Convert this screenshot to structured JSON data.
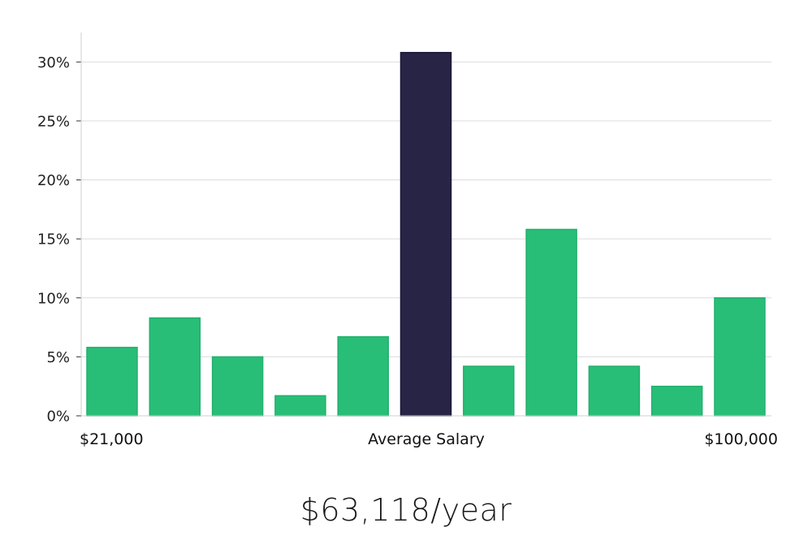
{
  "chart_data": {
    "type": "bar",
    "values": [
      5.8,
      8.3,
      5.0,
      1.7,
      6.7,
      30.8,
      4.2,
      15.8,
      4.2,
      2.5,
      10.0
    ],
    "highlight_index": 5,
    "ylim": [
      0,
      32.5
    ],
    "yticks": [
      0,
      5,
      10,
      15,
      20,
      25,
      30
    ],
    "ytick_labels": [
      "0%",
      "5%",
      "10%",
      "15%",
      "20%",
      "25%",
      "30%"
    ],
    "grid": true,
    "x_labels": {
      "left": "$21,000",
      "center": "Average Salary",
      "right": "$100,000"
    },
    "colors": {
      "bar": "#29BE77",
      "highlight": "#272446",
      "grid": "#dcdcdc",
      "axis": "#cfcfcf"
    }
  },
  "summary": {
    "average_salary": "$63,118/year"
  }
}
